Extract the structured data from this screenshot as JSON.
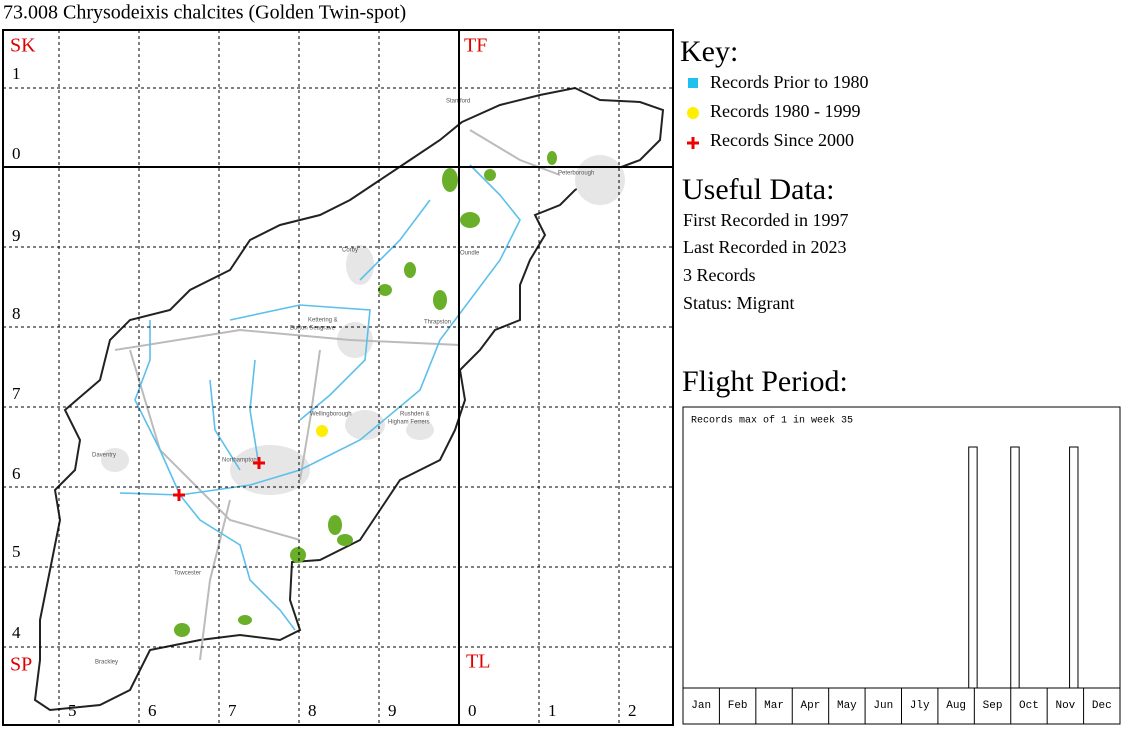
{
  "title": "73.008 Chrysodeixis chalcites (Golden Twin-spot)",
  "map": {
    "squares": [
      "SK",
      "TF",
      "SP",
      "TL"
    ],
    "northings": [
      "1",
      "0",
      "9",
      "8",
      "7",
      "6",
      "5",
      "4"
    ],
    "eastings": [
      "5",
      "6",
      "7",
      "8",
      "9",
      "0",
      "1",
      "2"
    ],
    "towns": [
      "Stamford",
      "Peterborough",
      "Corby",
      "Oundle",
      "Kettering &",
      "Burton Seagrave",
      "Thrapston",
      "Wellingborough",
      "Rushden &",
      "Higham Ferrers",
      "Daventry",
      "Northampton",
      "Towcester",
      "Brackley"
    ]
  },
  "key": {
    "heading": "Key:",
    "items": [
      "Records Prior to 1980",
      "Records 1980 - 1999",
      "Records Since 2000"
    ]
  },
  "useful_data": {
    "heading": "Useful Data:",
    "lines": [
      "First Recorded in 1997",
      "Last Recorded in 2023",
      "3 Records",
      "Status: Migrant"
    ]
  },
  "flight_period": {
    "heading": "Flight Period:",
    "caption": "Records max of 1 in week 35",
    "months": [
      "Jan",
      "Feb",
      "Mar",
      "Apr",
      "May",
      "Jun",
      "Jly",
      "Aug",
      "Sep",
      "Oct",
      "Nov",
      "Dec"
    ],
    "weeks": [
      35,
      40,
      47
    ],
    "values": [
      1,
      1,
      1
    ],
    "ylim": [
      0,
      1
    ]
  }
}
